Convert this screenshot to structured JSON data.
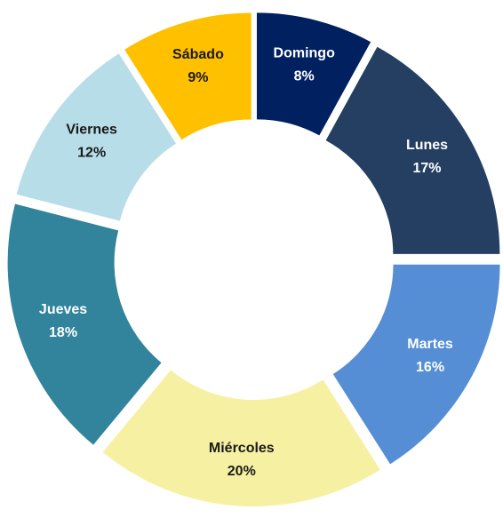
{
  "chart_data": {
    "type": "donut",
    "categories": [
      "Domingo",
      "Lunes",
      "Martes",
      "Miércoles",
      "Jueves",
      "Viernes",
      "Sábado"
    ],
    "values": [
      8,
      17,
      16,
      20,
      18,
      12,
      9
    ],
    "value_labels": [
      "8%",
      "17%",
      "16%",
      "20%",
      "18%",
      "12%",
      "9%"
    ],
    "colors": [
      "#002060",
      "#243f61",
      "#558ed5",
      "#f6f1a2",
      "#31849b",
      "#b7dde8",
      "#ffc000"
    ]
  }
}
